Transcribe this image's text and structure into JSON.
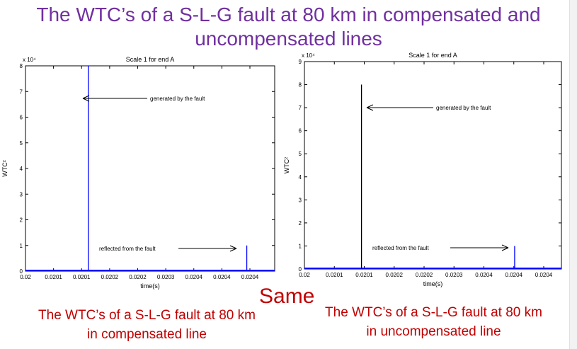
{
  "slide": {
    "title_line1": "The WTC’s of a S-L-G fault at 80 km in compensated and",
    "title_line2": "uncompensated lines",
    "same_label": "Same",
    "caption_left_line1": "The WTC’s of a S-L-G fault at 80 km",
    "caption_left_line2": "in compensated line",
    "caption_right_line1": "The WTC’s of a S-L-G fault at 80 km",
    "caption_right_line2": "in uncompensated line"
  },
  "chart_data": [
    {
      "type": "line",
      "title": "Scale 1 for end A",
      "xlabel": "time(s)",
      "ylabel": "WTC²",
      "multiplier": "x 10⁴",
      "ylim": [
        0,
        8
      ],
      "yticks": [
        "0",
        "1",
        "2",
        "3",
        "4",
        "5",
        "6",
        "7",
        "8"
      ],
      "xticks": [
        "0.02",
        "0.0201",
        "0.0201",
        "0.0202",
        "0.0202",
        "0.0203",
        "0.0204",
        "0.0204",
        "0.0204"
      ],
      "line_color": "#0000ff",
      "annotations": [
        "generated by the fault",
        "reflected from the fault"
      ],
      "spikes": [
        {
          "x_frac": 0.252,
          "value": 8
        },
        {
          "x_frac": 0.888,
          "value": 1
        }
      ]
    },
    {
      "type": "line",
      "title": "Scale 1 for end A",
      "xlabel": "time(s)",
      "ylabel": "WTC²",
      "multiplier": "x 10⁴",
      "ylim": [
        0,
        9
      ],
      "yticks": [
        "0",
        "1",
        "2",
        "3",
        "4",
        "5",
        "6",
        "7",
        "8",
        "9"
      ],
      "xticks": [
        "0.02",
        "0.0201",
        "0.0201",
        "0.0202",
        "0.0202",
        "0.0203",
        "0.0204",
        "0.0204",
        "0.0204"
      ],
      "line_color": "#000000",
      "reflected_color": "#0000ff",
      "annotations": [
        "generated by the fault",
        "reflected from the fault"
      ],
      "spikes": [
        {
          "x_frac": 0.222,
          "value": 8
        },
        {
          "x_frac": 0.818,
          "value": 1
        }
      ]
    }
  ]
}
